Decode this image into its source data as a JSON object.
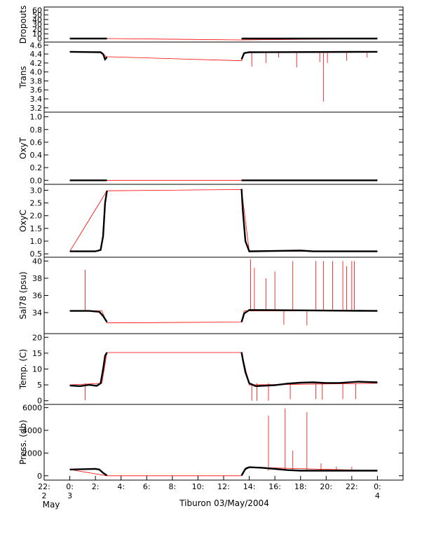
{
  "chart_data": {
    "type": "line",
    "title": "",
    "xlabel": "Tiburon 03/May/2004",
    "x_unit": "hours since 00:00 03/May/2004",
    "xlim": [
      -2,
      26
    ],
    "x_ticks": [
      {
        "x": -2,
        "line1": "22:",
        "line2": "2",
        "line3": "May"
      },
      {
        "x": 0,
        "line1": "0:",
        "line2": "3",
        "line3": ""
      },
      {
        "x": 2,
        "line1": "2:",
        "line2": "",
        "line3": ""
      },
      {
        "x": 4,
        "line1": "4:",
        "line2": "",
        "line3": ""
      },
      {
        "x": 6,
        "line1": "6:",
        "line2": "",
        "line3": ""
      },
      {
        "x": 8,
        "line1": "8:",
        "line2": "",
        "line3": ""
      },
      {
        "x": 10,
        "line1": "10:",
        "line2": "",
        "line3": ""
      },
      {
        "x": 12,
        "line1": "12:",
        "line2": "",
        "line3": ""
      },
      {
        "x": 14,
        "line1": "14:",
        "line2": "",
        "line3": ""
      },
      {
        "x": 16,
        "line1": "16:",
        "line2": "",
        "line3": ""
      },
      {
        "x": 18,
        "line1": "18:",
        "line2": "",
        "line3": ""
      },
      {
        "x": 20,
        "line1": "20:",
        "line2": "",
        "line3": ""
      },
      {
        "x": 22,
        "line1": "22:",
        "line2": "",
        "line3": ""
      },
      {
        "x": 24,
        "line1": "0:",
        "line2": "4",
        "line3": ""
      }
    ],
    "colors": {
      "processed": "#000000",
      "raw": "#ff0000"
    },
    "panels": [
      {
        "ylabel": "Dropouts",
        "ylim": [
          -3,
          62
        ],
        "yticks": [
          0,
          10,
          20,
          30,
          40,
          50,
          60
        ],
        "gap": [
          2.9,
          13.4
        ],
        "red_line": [
          [
            0,
            0
          ],
          [
            2.9,
            0
          ],
          [
            13.4,
            -3
          ],
          [
            24,
            0
          ]
        ],
        "black_segments": [
          [
            [
              0,
              0
            ],
            [
              2.9,
              0
            ]
          ],
          [
            [
              13.4,
              0
            ],
            [
              24,
              0
            ]
          ]
        ],
        "spikes": []
      },
      {
        "ylabel": "Trans",
        "ylim": [
          3.15,
          4.62
        ],
        "yticks": [
          3.2,
          3.4,
          3.6,
          3.8,
          4.0,
          4.2,
          4.4,
          4.6
        ],
        "gap": [
          2.9,
          13.4
        ],
        "red_line": [
          [
            0,
            4.44
          ],
          [
            2.5,
            4.43
          ],
          [
            2.8,
            4.35
          ],
          [
            2.9,
            4.34
          ],
          [
            13.4,
            4.25
          ],
          [
            13.6,
            4.43
          ],
          [
            24,
            4.44
          ]
        ],
        "black_segments": [
          [
            [
              0,
              4.45
            ],
            [
              2.4,
              4.44
            ],
            [
              2.6,
              4.4
            ],
            [
              2.75,
              4.28
            ],
            [
              2.9,
              4.33
            ]
          ],
          [
            [
              13.4,
              4.28
            ],
            [
              13.6,
              4.42
            ],
            [
              14,
              4.44
            ],
            [
              24,
              4.45
            ]
          ]
        ],
        "spikes": [
          [
            14.2,
            4.12
          ],
          [
            15.3,
            4.2
          ],
          [
            16.3,
            4.32
          ],
          [
            17.7,
            4.1
          ],
          [
            19.5,
            4.22
          ],
          [
            19.8,
            3.34
          ],
          [
            20.1,
            4.2
          ],
          [
            21.6,
            4.25
          ],
          [
            23.2,
            4.32
          ]
        ]
      },
      {
        "ylabel": "OxyT",
        "ylim": [
          -0.03,
          1.04
        ],
        "yticks": [
          0.0,
          0.2,
          0.4,
          0.6,
          0.8,
          1.0
        ],
        "gap": [
          2.9,
          13.4
        ],
        "red_line": [
          [
            0,
            0
          ],
          [
            24,
            0
          ]
        ],
        "black_segments": [
          [
            [
              0,
              0
            ],
            [
              2.9,
              0
            ]
          ],
          [
            [
              13.4,
              0
            ],
            [
              24,
              0
            ]
          ]
        ],
        "spikes": []
      },
      {
        "ylabel": "OxyC",
        "ylim": [
          0.45,
          3.15
        ],
        "yticks": [
          0.5,
          1.0,
          1.5,
          2.0,
          2.5,
          3.0
        ],
        "gap": [
          2.9,
          13.4
        ],
        "red_line": [
          [
            0,
            0.6
          ],
          [
            2.9,
            2.98
          ],
          [
            13.4,
            3.03
          ],
          [
            14,
            0.6
          ],
          [
            24,
            0.6
          ]
        ],
        "black_segments": [
          [
            [
              0,
              0.6
            ],
            [
              2.0,
              0.6
            ],
            [
              2.4,
              0.65
            ],
            [
              2.6,
              1.2
            ],
            [
              2.75,
              2.5
            ],
            [
              2.9,
              2.98
            ]
          ],
          [
            [
              13.4,
              3.05
            ],
            [
              13.5,
              2.2
            ],
            [
              13.7,
              1.0
            ],
            [
              14,
              0.6
            ],
            [
              18,
              0.63
            ],
            [
              19,
              0.6
            ],
            [
              24,
              0.6
            ]
          ]
        ],
        "spikes": []
      },
      {
        "ylabel": "Sal78 (psu)",
        "ylim": [
          31.8,
          40.2
        ],
        "yticks": [
          34,
          36,
          38,
          40
        ],
        "gap": [
          2.9,
          13.4
        ],
        "red_line": [
          [
            0,
            34.2
          ],
          [
            2.5,
            34.2
          ],
          [
            2.9,
            32.8
          ],
          [
            13.4,
            32.9
          ],
          [
            13.6,
            34.2
          ],
          [
            24,
            34.2
          ]
        ],
        "black_segments": [
          [
            [
              0,
              34.2
            ],
            [
              1.5,
              34.2
            ],
            [
              2.3,
              34.1
            ],
            [
              2.6,
              33.6
            ],
            [
              2.9,
              32.9
            ]
          ],
          [
            [
              13.4,
              32.9
            ],
            [
              13.6,
              33.9
            ],
            [
              14,
              34.3
            ],
            [
              24,
              34.2
            ]
          ]
        ],
        "spikes": [
          [
            1.2,
            39.0
          ],
          [
            14.1,
            40.2
          ],
          [
            14.4,
            39.2
          ],
          [
            15.3,
            38.0
          ],
          [
            16.0,
            38.8
          ],
          [
            16.7,
            32.6
          ],
          [
            17.4,
            40.0
          ],
          [
            18.5,
            32.5
          ],
          [
            19.2,
            40.0
          ],
          [
            19.8,
            40.0
          ],
          [
            20.5,
            40.0
          ],
          [
            21.3,
            40.0
          ],
          [
            21.6,
            39.4
          ],
          [
            22.0,
            40.0
          ],
          [
            22.2,
            40.0
          ]
        ]
      },
      {
        "ylabel": "Temp. (C)",
        "ylim": [
          -0.5,
          20.5
        ],
        "yticks": [
          0,
          5,
          10,
          15,
          20
        ],
        "gap": [
          2.9,
          13.4
        ],
        "red_line": [
          [
            0,
            5
          ],
          [
            2.5,
            5.5
          ],
          [
            2.9,
            15.2
          ],
          [
            13.4,
            15.2
          ],
          [
            14,
            5
          ],
          [
            24,
            5.5
          ]
        ],
        "black_segments": [
          [
            [
              0,
              4.8
            ],
            [
              0.8,
              4.6
            ],
            [
              1.5,
              5.0
            ],
            [
              2.1,
              4.7
            ],
            [
              2.4,
              5.5
            ],
            [
              2.6,
              10
            ],
            [
              2.75,
              14.2
            ],
            [
              2.9,
              15.2
            ]
          ],
          [
            [
              13.4,
              15.3
            ],
            [
              13.5,
              13
            ],
            [
              13.7,
              9
            ],
            [
              14,
              5.5
            ],
            [
              14.5,
              4.6
            ],
            [
              16,
              4.9
            ],
            [
              17,
              5.4
            ],
            [
              18,
              5.7
            ],
            [
              19,
              5.8
            ],
            [
              20,
              5.6
            ],
            [
              21,
              5.6
            ],
            [
              22.5,
              6.0
            ],
            [
              24,
              5.8
            ]
          ]
        ],
        "spikes": [
          [
            1.2,
            0.2
          ],
          [
            14.2,
            0.0
          ],
          [
            14.6,
            0.0
          ],
          [
            15.5,
            0.0
          ],
          [
            17.2,
            0.5
          ],
          [
            19.2,
            0.5
          ],
          [
            19.7,
            0.3
          ],
          [
            21.3,
            0.5
          ],
          [
            22.3,
            0.5
          ]
        ]
      },
      {
        "ylabel": "Press. (db)",
        "ylim": [
          -200,
          6100
        ],
        "yticks": [
          0,
          2000,
          4000,
          6000
        ],
        "gap": [
          2.9,
          13.4
        ],
        "red_line": [
          [
            0,
            550
          ],
          [
            2.9,
            0
          ],
          [
            13.4,
            0
          ],
          [
            13.8,
            750
          ],
          [
            24,
            450
          ]
        ],
        "black_segments": [
          [
            [
              0,
              550
            ],
            [
              1,
              580
            ],
            [
              2,
              600
            ],
            [
              2.3,
              550
            ],
            [
              2.6,
              250
            ],
            [
              2.9,
              20
            ]
          ],
          [
            [
              13.4,
              20
            ],
            [
              13.7,
              600
            ],
            [
              14,
              750
            ],
            [
              15,
              700
            ],
            [
              16,
              600
            ],
            [
              17,
              500
            ],
            [
              18,
              450
            ],
            [
              20,
              450
            ],
            [
              22,
              450
            ],
            [
              24,
              450
            ]
          ]
        ],
        "spikes": [
          [
            15.5,
            5300
          ],
          [
            16.8,
            5950
          ],
          [
            18.5,
            5600
          ],
          [
            17.4,
            2200
          ],
          [
            19.6,
            1100
          ],
          [
            20.8,
            800
          ],
          [
            22.0,
            800
          ]
        ]
      }
    ]
  }
}
